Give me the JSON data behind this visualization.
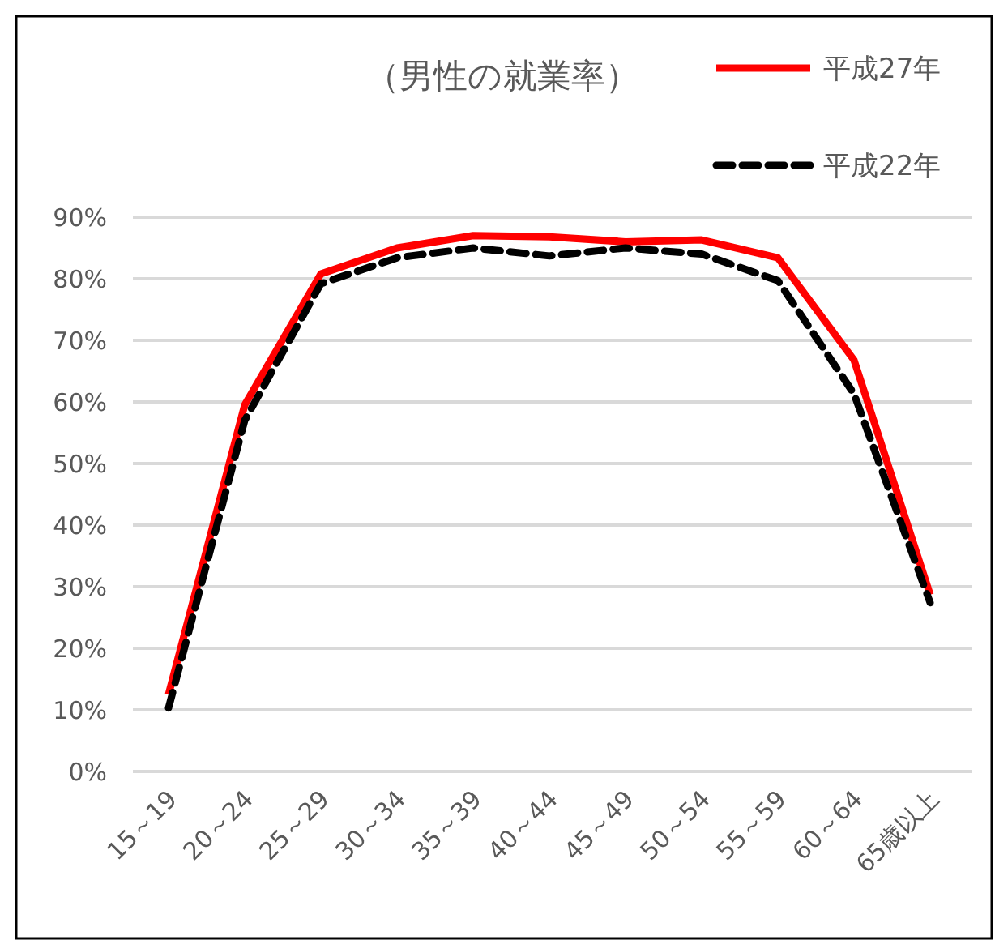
{
  "chart_data": {
    "type": "line",
    "title": "（男性の就業率）",
    "categories": [
      "15～19",
      "20～24",
      "25～29",
      "30～34",
      "35～39",
      "40～44",
      "45～49",
      "50～54",
      "55～59",
      "60～64",
      "65歳以上"
    ],
    "series": [
      {
        "name": "平成27年",
        "color": "#ff0000",
        "line_style": "solid",
        "values": [
          12.5,
          59.5,
          80.8,
          85,
          87,
          86.8,
          86,
          86.3,
          83.4,
          66.8,
          28.7
        ]
      },
      {
        "name": "平成22年",
        "color": "#000000",
        "line_style": "dashed",
        "values": [
          10.3,
          57,
          79.2,
          83.4,
          85,
          83.7,
          85,
          84,
          79.7,
          61.3,
          27.4
        ]
      }
    ],
    "ylim": [
      0,
      90
    ],
    "yticks": [
      {
        "value": 0,
        "label": "0%"
      },
      {
        "value": 10,
        "label": "10%"
      },
      {
        "value": 20,
        "label": "20%"
      },
      {
        "value": 30,
        "label": "30%"
      },
      {
        "value": 40,
        "label": "40%"
      },
      {
        "value": 50,
        "label": "50%"
      },
      {
        "value": 60,
        "label": "60%"
      },
      {
        "value": 70,
        "label": "70%"
      },
      {
        "value": 80,
        "label": "80%"
      },
      {
        "value": 90,
        "label": "90%"
      }
    ],
    "grid": "y",
    "legend": "top right",
    "marker": "none"
  }
}
